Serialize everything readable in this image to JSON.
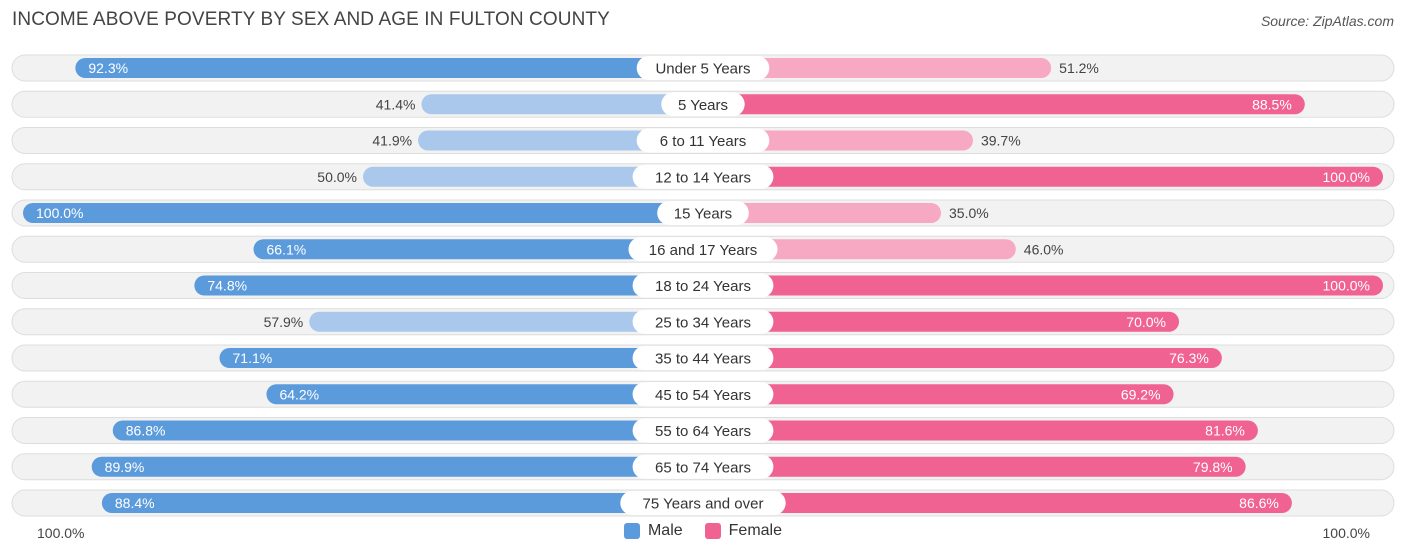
{
  "header": {
    "title": "INCOME ABOVE POVERTY BY SEX AND AGE IN FULTON COUNTY",
    "source": "Source: ZipAtlas.com"
  },
  "colors": {
    "male_strong": "#5b9bdc",
    "male_light": "#a9c8ec",
    "female_strong": "#f06292",
    "female_light": "#f7a8c2",
    "row_bg": "#f2f2f2",
    "row_border": "#dddddd"
  },
  "axis": {
    "left_label": "100.0%",
    "right_label": "100.0%"
  },
  "legend": {
    "male_label": "Male",
    "female_label": "Female"
  },
  "chart_data": {
    "type": "bar",
    "orientation": "horizontal-diverging",
    "title": "INCOME ABOVE POVERTY BY SEX AND AGE IN FULTON COUNTY",
    "xlim": [
      -100,
      100
    ],
    "unit": "%",
    "categories": [
      "Under 5 Years",
      "5 Years",
      "6 to 11 Years",
      "12 to 14 Years",
      "15 Years",
      "16 and 17 Years",
      "18 to 24 Years",
      "25 to 34 Years",
      "35 to 44 Years",
      "45 to 54 Years",
      "55 to 64 Years",
      "65 to 74 Years",
      "75 Years and over"
    ],
    "series": [
      {
        "name": "Male",
        "values": [
          92.3,
          41.4,
          41.9,
          50.0,
          100.0,
          66.1,
          74.8,
          57.9,
          71.1,
          64.2,
          86.8,
          89.9,
          88.4
        ],
        "labels": [
          "92.3%",
          "41.4%",
          "41.9%",
          "50.0%",
          "100.0%",
          "66.1%",
          "74.8%",
          "57.9%",
          "71.1%",
          "64.2%",
          "86.8%",
          "89.9%",
          "88.4%"
        ]
      },
      {
        "name": "Female",
        "values": [
          51.2,
          88.5,
          39.7,
          100.0,
          35.0,
          46.0,
          100.0,
          70.0,
          76.3,
          69.2,
          81.6,
          79.8,
          86.6
        ],
        "labels": [
          "51.2%",
          "88.5%",
          "39.7%",
          "100.0%",
          "35.0%",
          "46.0%",
          "100.0%",
          "70.0%",
          "76.3%",
          "69.2%",
          "81.6%",
          "79.8%",
          "86.6%"
        ]
      }
    ],
    "legend_position": "bottom-center"
  }
}
